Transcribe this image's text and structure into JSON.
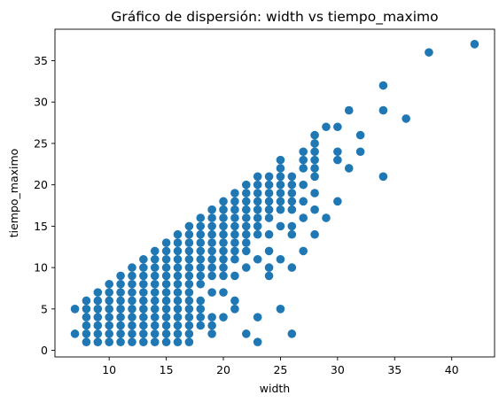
{
  "chart_data": {
    "type": "scatter",
    "title": "Gráfico de dispersión: width vs tiempo_maximo",
    "xlabel": "width",
    "ylabel": "tiempo_maximo",
    "xlim": [
      5.25,
      43.75
    ],
    "ylim": [
      -0.8,
      38.8
    ],
    "xticks": [
      10,
      15,
      20,
      25,
      30,
      35,
      40
    ],
    "yticks": [
      0,
      5,
      10,
      15,
      20,
      25,
      30,
      35
    ],
    "grid": false,
    "marker_color": "#1f77b4",
    "points": [
      [
        7,
        2
      ],
      [
        7,
        5
      ],
      [
        8,
        1
      ],
      [
        8,
        2
      ],
      [
        8,
        3
      ],
      [
        8,
        4
      ],
      [
        8,
        5
      ],
      [
        8,
        6
      ],
      [
        9,
        1
      ],
      [
        9,
        2
      ],
      [
        9,
        3
      ],
      [
        9,
        4
      ],
      [
        9,
        5
      ],
      [
        9,
        6
      ],
      [
        9,
        7
      ],
      [
        10,
        1
      ],
      [
        10,
        2
      ],
      [
        10,
        3
      ],
      [
        10,
        4
      ],
      [
        10,
        5
      ],
      [
        10,
        6
      ],
      [
        10,
        7
      ],
      [
        10,
        8
      ],
      [
        11,
        1
      ],
      [
        11,
        2
      ],
      [
        11,
        3
      ],
      [
        11,
        4
      ],
      [
        11,
        5
      ],
      [
        11,
        6
      ],
      [
        11,
        7
      ],
      [
        11,
        8
      ],
      [
        11,
        9
      ],
      [
        12,
        1
      ],
      [
        12,
        2
      ],
      [
        12,
        3
      ],
      [
        12,
        4
      ],
      [
        12,
        5
      ],
      [
        12,
        6
      ],
      [
        12,
        7
      ],
      [
        12,
        8
      ],
      [
        12,
        9
      ],
      [
        12,
        10
      ],
      [
        13,
        1
      ],
      [
        13,
        2
      ],
      [
        13,
        3
      ],
      [
        13,
        4
      ],
      [
        13,
        5
      ],
      [
        13,
        6
      ],
      [
        13,
        7
      ],
      [
        13,
        8
      ],
      [
        13,
        9
      ],
      [
        13,
        10
      ],
      [
        13,
        11
      ],
      [
        14,
        1
      ],
      [
        14,
        2
      ],
      [
        14,
        3
      ],
      [
        14,
        4
      ],
      [
        14,
        5
      ],
      [
        14,
        6
      ],
      [
        14,
        7
      ],
      [
        14,
        8
      ],
      [
        14,
        9
      ],
      [
        14,
        10
      ],
      [
        14,
        11
      ],
      [
        14,
        12
      ],
      [
        15,
        1
      ],
      [
        15,
        2
      ],
      [
        15,
        3
      ],
      [
        15,
        4
      ],
      [
        15,
        5
      ],
      [
        15,
        6
      ],
      [
        15,
        7
      ],
      [
        15,
        8
      ],
      [
        15,
        9
      ],
      [
        15,
        10
      ],
      [
        15,
        11
      ],
      [
        15,
        12
      ],
      [
        15,
        13
      ],
      [
        16,
        1
      ],
      [
        16,
        2
      ],
      [
        16,
        3
      ],
      [
        16,
        4
      ],
      [
        16,
        5
      ],
      [
        16,
        6
      ],
      [
        16,
        7
      ],
      [
        16,
        8
      ],
      [
        16,
        9
      ],
      [
        16,
        10
      ],
      [
        16,
        11
      ],
      [
        16,
        12
      ],
      [
        16,
        13
      ],
      [
        16,
        14
      ],
      [
        17,
        1
      ],
      [
        17,
        2
      ],
      [
        17,
        3
      ],
      [
        17,
        4
      ],
      [
        17,
        5
      ],
      [
        17,
        6
      ],
      [
        17,
        7
      ],
      [
        17,
        8
      ],
      [
        17,
        9
      ],
      [
        17,
        10
      ],
      [
        17,
        11
      ],
      [
        17,
        12
      ],
      [
        17,
        13
      ],
      [
        17,
        14
      ],
      [
        17,
        15
      ],
      [
        18,
        3
      ],
      [
        18,
        4
      ],
      [
        18,
        5
      ],
      [
        18,
        6
      ],
      [
        18,
        8
      ],
      [
        18,
        9
      ],
      [
        18,
        10
      ],
      [
        18,
        11
      ],
      [
        18,
        12
      ],
      [
        18,
        13
      ],
      [
        18,
        14
      ],
      [
        18,
        15
      ],
      [
        18,
        16
      ],
      [
        19,
        2
      ],
      [
        19,
        3
      ],
      [
        19,
        4
      ],
      [
        19,
        7
      ],
      [
        19,
        9
      ],
      [
        19,
        10
      ],
      [
        19,
        11
      ],
      [
        19,
        12
      ],
      [
        19,
        13
      ],
      [
        19,
        14
      ],
      [
        19,
        15
      ],
      [
        19,
        16
      ],
      [
        19,
        17
      ],
      [
        20,
        4
      ],
      [
        20,
        7
      ],
      [
        20,
        9
      ],
      [
        20,
        10
      ],
      [
        20,
        11
      ],
      [
        20,
        12
      ],
      [
        20,
        13
      ],
      [
        20,
        14
      ],
      [
        20,
        15
      ],
      [
        20,
        16
      ],
      [
        20,
        17
      ],
      [
        20,
        18
      ],
      [
        21,
        5
      ],
      [
        21,
        6
      ],
      [
        21,
        9
      ],
      [
        21,
        11
      ],
      [
        21,
        12
      ],
      [
        21,
        13
      ],
      [
        21,
        14
      ],
      [
        21,
        15
      ],
      [
        21,
        16
      ],
      [
        21,
        17
      ],
      [
        21,
        18
      ],
      [
        21,
        19
      ],
      [
        22,
        2
      ],
      [
        22,
        10
      ],
      [
        22,
        12
      ],
      [
        22,
        13
      ],
      [
        22,
        14
      ],
      [
        22,
        15
      ],
      [
        22,
        16
      ],
      [
        22,
        17
      ],
      [
        22,
        18
      ],
      [
        22,
        19
      ],
      [
        22,
        20
      ],
      [
        23,
        1
      ],
      [
        23,
        4
      ],
      [
        23,
        11
      ],
      [
        23,
        14
      ],
      [
        23,
        15
      ],
      [
        23,
        16
      ],
      [
        23,
        17
      ],
      [
        23,
        18
      ],
      [
        23,
        19
      ],
      [
        23,
        20
      ],
      [
        23,
        21
      ],
      [
        24,
        9
      ],
      [
        24,
        10
      ],
      [
        24,
        12
      ],
      [
        24,
        14
      ],
      [
        24,
        16
      ],
      [
        24,
        17
      ],
      [
        24,
        18
      ],
      [
        24,
        19
      ],
      [
        24,
        20
      ],
      [
        24,
        21
      ],
      [
        25,
        5
      ],
      [
        25,
        11
      ],
      [
        25,
        15
      ],
      [
        25,
        17
      ],
      [
        25,
        18
      ],
      [
        25,
        19
      ],
      [
        25,
        20
      ],
      [
        25,
        21
      ],
      [
        25,
        22
      ],
      [
        25,
        23
      ],
      [
        26,
        2
      ],
      [
        26,
        10
      ],
      [
        26,
        14
      ],
      [
        26,
        15
      ],
      [
        26,
        17
      ],
      [
        26,
        18
      ],
      [
        26,
        19
      ],
      [
        26,
        20
      ],
      [
        26,
        21
      ],
      [
        27,
        12
      ],
      [
        27,
        16
      ],
      [
        27,
        18
      ],
      [
        27,
        20
      ],
      [
        27,
        22
      ],
      [
        27,
        23
      ],
      [
        27,
        24
      ],
      [
        28,
        14
      ],
      [
        28,
        17
      ],
      [
        28,
        19
      ],
      [
        28,
        21
      ],
      [
        28,
        22
      ],
      [
        28,
        23
      ],
      [
        28,
        24
      ],
      [
        28,
        25
      ],
      [
        28,
        26
      ],
      [
        29,
        16
      ],
      [
        29,
        27
      ],
      [
        30,
        18
      ],
      [
        30,
        23
      ],
      [
        30,
        24
      ],
      [
        30,
        27
      ],
      [
        31,
        22
      ],
      [
        31,
        29
      ],
      [
        32,
        24
      ],
      [
        32,
        26
      ],
      [
        34,
        21
      ],
      [
        34,
        29
      ],
      [
        34,
        32
      ],
      [
        36,
        28
      ],
      [
        38,
        36
      ],
      [
        42,
        37
      ]
    ]
  }
}
